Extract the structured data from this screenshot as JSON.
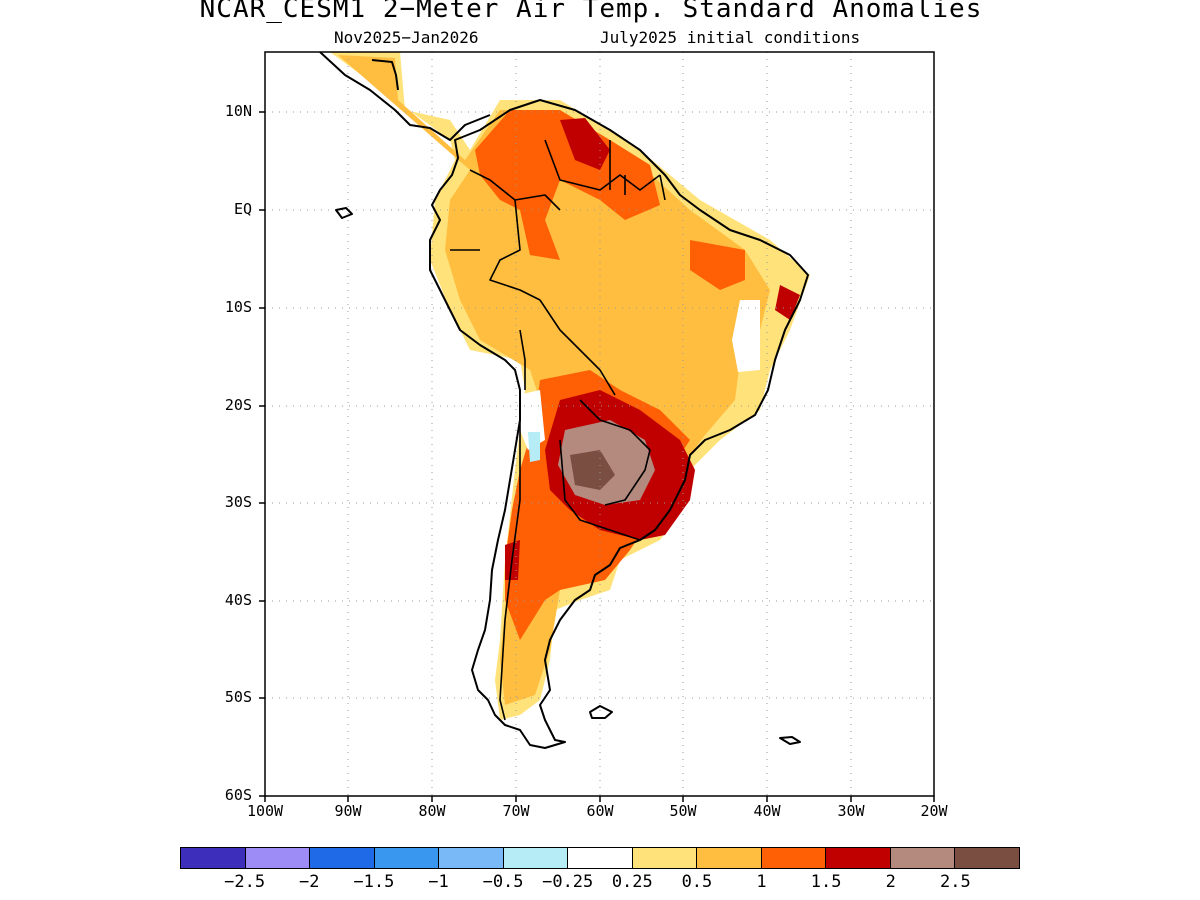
{
  "title": "NCAR_CESM1 2−Meter Air Temp. Standard Anomalies",
  "subtitle": {
    "period": "Nov2025−Jan2026",
    "conditions": "July2025 initial conditions"
  },
  "map": {
    "region": "South America",
    "lon_range": [
      -100,
      -20
    ],
    "lat_range": [
      -60,
      15
    ],
    "grid": "dotted",
    "ylabels": [
      "10N",
      "EQ",
      "10S",
      "20S",
      "30S",
      "40S",
      "50S",
      "60S"
    ],
    "xlabels": [
      "100W",
      "90W",
      "80W",
      "70W",
      "60W",
      "50W",
      "40W",
      "30W",
      "20W"
    ]
  },
  "colorbar": {
    "colors": [
      "#3d2fbb",
      "#9d8cf5",
      "#1f6ae6",
      "#3a97f0",
      "#79b9f7",
      "#b5ecf6",
      "#ffffff",
      "#ffe27a",
      "#ffbe3f",
      "#ff5f05",
      "#c00000",
      "#b48a7e",
      "#7a4e40"
    ],
    "labels": [
      "−2.5",
      "−2",
      "−1.5",
      "−1",
      "−0.5",
      "−0.25",
      "0.25",
      "0.5",
      "1",
      "1.5",
      "2",
      "2.5"
    ]
  }
}
